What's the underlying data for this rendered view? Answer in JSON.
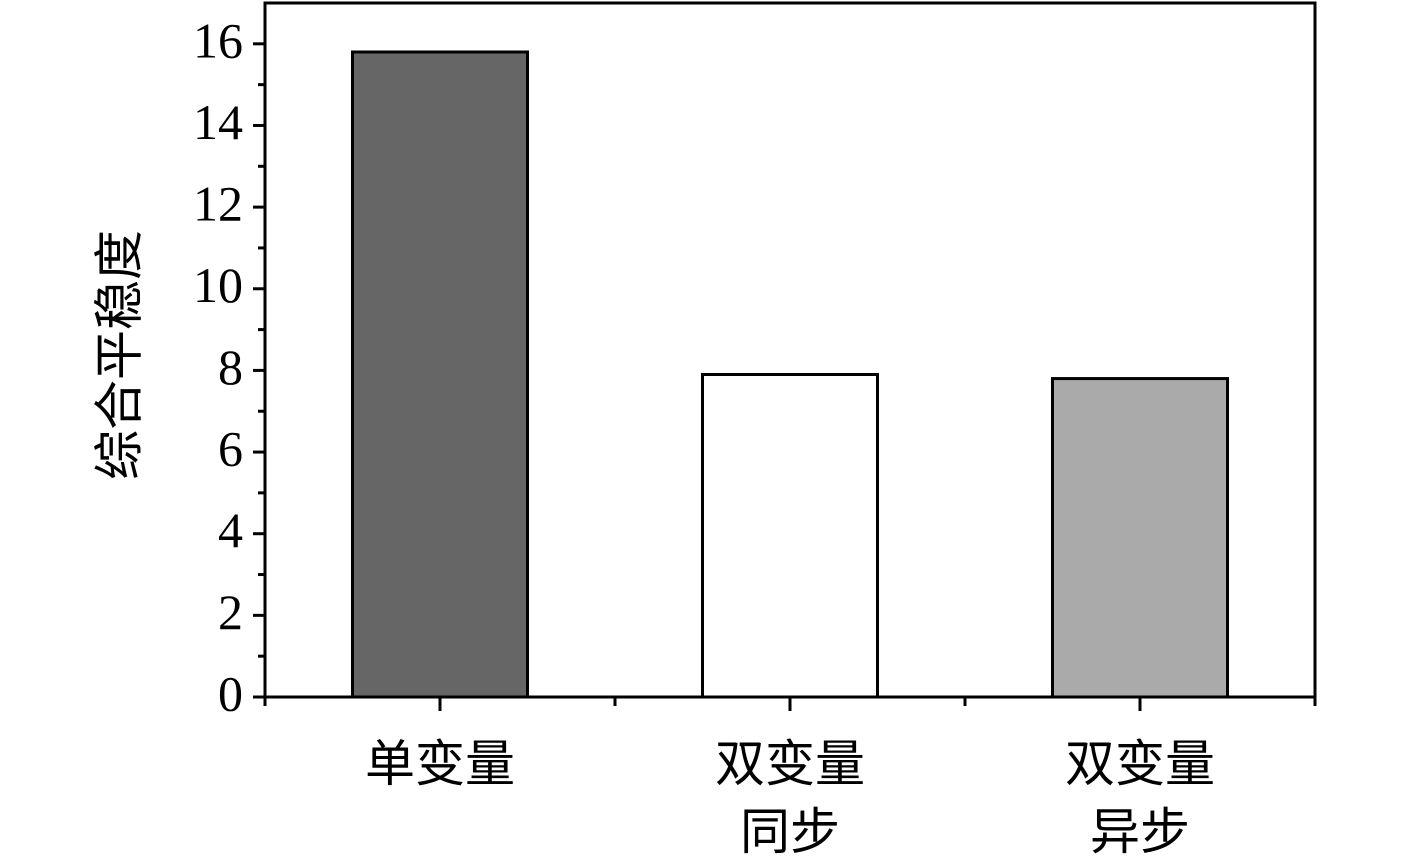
{
  "chart_data": {
    "type": "bar",
    "y_label": "综合平稳度",
    "categories": [
      "单变量",
      "双变量\n同步",
      "双变量\n异步"
    ],
    "values": [
      15.8,
      7.9,
      7.8
    ],
    "colors": [
      "#666666",
      "#ffffff",
      "#aaaaaa"
    ],
    "ylim": [
      0,
      17
    ],
    "yticks": [
      0,
      2,
      4,
      6,
      8,
      10,
      12,
      14,
      16
    ],
    "yminor_ticks": [
      1,
      3,
      5,
      7,
      9,
      11,
      13,
      15
    ],
    "grid": false
  }
}
